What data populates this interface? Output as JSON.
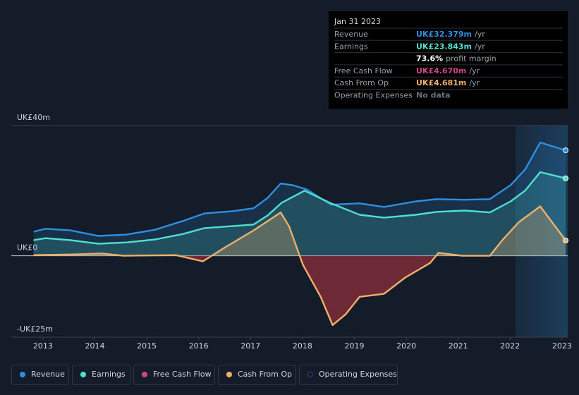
{
  "chart_data": {
    "type": "line",
    "xlim": [
      2012.39,
      2023.11
    ],
    "xticks": [
      2013,
      2014,
      2015,
      2016,
      2017,
      2018,
      2019,
      2020,
      2021,
      2022,
      2023
    ],
    "ylim": [
      -25,
      40
    ],
    "yticks": [
      {
        "value": 40,
        "label": "UK£40m"
      },
      {
        "value": 0,
        "label": "UK£0"
      },
      {
        "value": -25,
        "label": "-UK£25m"
      }
    ],
    "grid": true,
    "series": [
      {
        "name": "Revenue",
        "color": "#2e8fe0",
        "x": [
          2012.82,
          2013.05,
          2013.53,
          2014.07,
          2014.61,
          2015.16,
          2015.7,
          2016.11,
          2016.65,
          2017.06,
          2017.33,
          2017.58,
          2017.81,
          2018.08,
          2018.55,
          2019.1,
          2019.57,
          2020.18,
          2020.59,
          2021.13,
          2021.61,
          2022.01,
          2022.29,
          2022.58,
          2023.07
        ],
        "values": [
          7.4,
          8.3,
          7.8,
          6.1,
          6.5,
          8.0,
          10.7,
          13.0,
          13.7,
          14.6,
          17.8,
          22.2,
          21.7,
          20.4,
          15.7,
          16.1,
          15.0,
          16.7,
          17.4,
          17.2,
          17.4,
          21.7,
          26.5,
          34.8,
          32.4
        ]
      },
      {
        "name": "Earnings",
        "color": "#4fe0cf",
        "x": [
          2012.82,
          2013.05,
          2013.53,
          2014.07,
          2014.61,
          2015.16,
          2015.7,
          2016.11,
          2016.65,
          2017.06,
          2017.33,
          2017.6,
          2018.04,
          2018.55,
          2019.1,
          2019.57,
          2020.18,
          2020.59,
          2021.13,
          2021.61,
          2022.01,
          2022.29,
          2022.58,
          2023.07
        ],
        "values": [
          4.8,
          5.4,
          4.8,
          3.7,
          4.1,
          5.0,
          6.7,
          8.5,
          9.1,
          9.6,
          12.4,
          16.3,
          20.0,
          16.1,
          12.6,
          11.7,
          12.6,
          13.5,
          13.9,
          13.3,
          16.7,
          20.0,
          25.7,
          23.8
        ]
      },
      {
        "name": "Cash From Op",
        "color": "#f0b06a",
        "negative_color": "#a8323e",
        "x": [
          2012.82,
          2013.53,
          2014.14,
          2014.55,
          2015.56,
          2016.08,
          2016.51,
          2017.06,
          2017.58,
          2017.74,
          2018.01,
          2018.35,
          2018.58,
          2018.83,
          2019.1,
          2019.57,
          2019.98,
          2020.46,
          2020.62,
          2021.07,
          2021.61,
          2021.85,
          2022.16,
          2022.58,
          2023.07
        ],
        "values": [
          0.2,
          0.4,
          0.7,
          0,
          0.2,
          -1.7,
          2.6,
          7.8,
          13.3,
          9.1,
          -2.8,
          -12.6,
          -21.3,
          -18.0,
          -12.6,
          -11.7,
          -6.7,
          -2.2,
          0.9,
          0,
          0,
          4.8,
          10.2,
          15.2,
          4.7
        ]
      }
    ],
    "extra_legend": [
      {
        "name": "Free Cash Flow",
        "color": "#d0458a"
      },
      {
        "name": "Operating Expenses",
        "color": "#2a2f6a",
        "disabled": true
      }
    ],
    "tooltip": {
      "date": "Jan 31 2023",
      "rows": [
        {
          "label": "Revenue",
          "value": "UK£32.379m",
          "unit": "/yr",
          "color": "#2e8fe0"
        },
        {
          "label": "Earnings",
          "value": "UK£23.843m",
          "unit": "/yr",
          "color": "#4fe0cf"
        },
        {
          "value": "73.6%",
          "unit": "profit margin",
          "color": "#ffffff"
        },
        {
          "label": "Free Cash Flow",
          "value": "UK£4.670m",
          "unit": "/yr",
          "color": "#d0458a"
        },
        {
          "label": "Cash From Op",
          "value": "UK£4.681m",
          "unit": "/yr",
          "color": "#f0b06a"
        },
        {
          "label": "Operating Expenses",
          "value": "No data",
          "color": "#6b7079"
        }
      ]
    }
  }
}
